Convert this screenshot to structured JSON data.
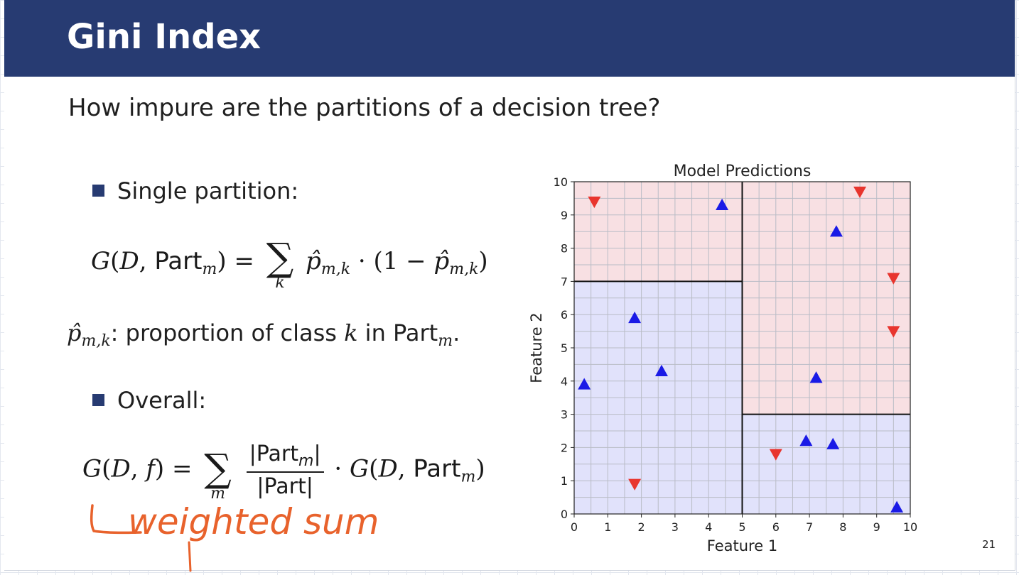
{
  "slide": {
    "title": "Gini Index",
    "question": "How impure are the partitions of a decision tree?",
    "bullet1": "Single partition:",
    "bullet2": "Overall:",
    "def_part1": ": proportion of class",
    "def_part2": "in",
    "handwritten": "weighted sum",
    "page_number": "21",
    "colors": {
      "header": "#273b72",
      "annotation": "#e8622c",
      "red": "#e8352e",
      "blue": "#1a1ae6"
    }
  },
  "chart_data": {
    "type": "scatter",
    "title": "Model Predictions",
    "xlabel": "Feature 1",
    "ylabel": "Feature 2",
    "xlim": [
      0,
      10
    ],
    "ylim": [
      0,
      10
    ],
    "xticks": [
      "0",
      "1",
      "2",
      "3",
      "4",
      "5",
      "6",
      "7",
      "8",
      "9",
      "10"
    ],
    "yticks": [
      "0",
      "1",
      "2",
      "3",
      "4",
      "5",
      "6",
      "7",
      "8",
      "9",
      "10"
    ],
    "grid": true,
    "regions": [
      {
        "x": [
          0,
          5
        ],
        "y": [
          7,
          10
        ],
        "class": "red"
      },
      {
        "x": [
          0,
          5
        ],
        "y": [
          0,
          7
        ],
        "class": "blue"
      },
      {
        "x": [
          5,
          10
        ],
        "y": [
          3,
          10
        ],
        "class": "red"
      },
      {
        "x": [
          5,
          10
        ],
        "y": [
          0,
          3
        ],
        "class": "blue"
      }
    ],
    "boundaries": [
      {
        "x": [
          0,
          5
        ],
        "y": [
          7,
          7
        ]
      },
      {
        "x": [
          5,
          5
        ],
        "y": [
          0,
          10
        ]
      },
      {
        "x": [
          5,
          10
        ],
        "y": [
          3,
          3
        ]
      }
    ],
    "series": [
      {
        "marker": "triangle-up",
        "color": "blue",
        "points": [
          [
            0.3,
            3.9
          ],
          [
            1.8,
            5.9
          ],
          [
            2.6,
            4.3
          ],
          [
            4.4,
            9.3
          ],
          [
            7.8,
            8.5
          ],
          [
            7.2,
            4.1
          ],
          [
            6.9,
            2.2
          ],
          [
            7.7,
            2.1
          ],
          [
            9.6,
            0.2
          ]
        ]
      },
      {
        "marker": "triangle-down",
        "color": "red",
        "points": [
          [
            0.6,
            9.4
          ],
          [
            1.8,
            0.9
          ],
          [
            8.5,
            9.7
          ],
          [
            9.5,
            7.1
          ],
          [
            9.5,
            5.5
          ],
          [
            6.0,
            1.8
          ]
        ]
      }
    ]
  }
}
